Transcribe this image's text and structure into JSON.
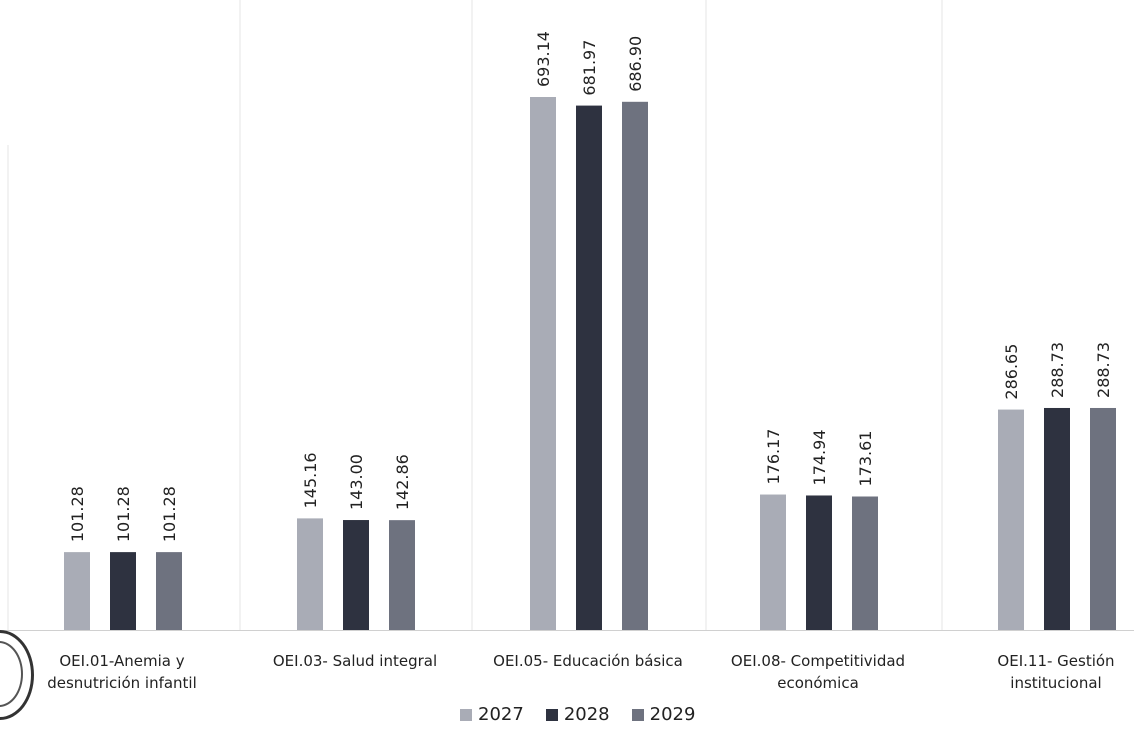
{
  "chart_data": {
    "type": "bar",
    "categories": [
      [
        "OEI.01-Anemia y",
        "desnutrición infantil"
      ],
      [
        "OEI.03- Salud integral"
      ],
      [
        "OEI.05- Educación básica"
      ],
      [
        "OEI.08- Competitividad",
        "económica"
      ],
      [
        "OEI.11- Gestión",
        "institucional"
      ]
    ],
    "series": [
      {
        "name": "2027",
        "color": "#a9acb6",
        "values": [
          101.28,
          145.16,
          693.14,
          176.17,
          286.65
        ],
        "labels": [
          "101.28",
          "145.16",
          "693.14",
          "176.17",
          "286.65"
        ]
      },
      {
        "name": "2028",
        "color": "#2e3240",
        "values": [
          101.28,
          143.0,
          681.97,
          174.94,
          288.73
        ],
        "labels": [
          "101.28",
          "143.00",
          "681.97",
          "174.94",
          "288.73"
        ]
      },
      {
        "name": "2029",
        "color": "#6e727f",
        "values": [
          101.28,
          142.86,
          686.9,
          173.61,
          288.73
        ],
        "labels": [
          "101.28",
          "142.86",
          "686.90",
          "173.61",
          "288.73"
        ]
      }
    ],
    "ylim": [
      0,
      693.14
    ],
    "grid": false,
    "legend": "bottom"
  }
}
